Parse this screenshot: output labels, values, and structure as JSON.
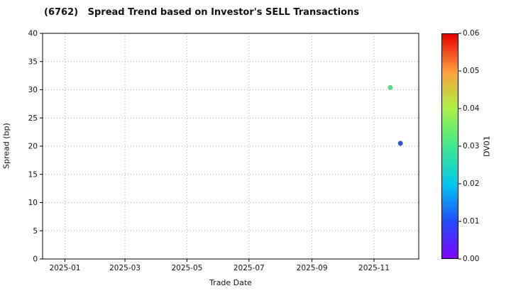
{
  "chart_data": {
    "type": "scatter",
    "title": "(6762)   Spread Trend based on Investor's SELL Transactions",
    "xlabel": "Trade Date",
    "ylabel": "Spread (bp)",
    "ylim": [
      0,
      40
    ],
    "yticks": [
      0,
      5,
      10,
      15,
      20,
      25,
      30,
      35,
      40
    ],
    "x_range": [
      "2024-12-10",
      "2025-12-15"
    ],
    "xticks": [
      "2025-01",
      "2025-03",
      "2025-05",
      "2025-07",
      "2025-09",
      "2025-11"
    ],
    "grid": "dotted",
    "legend": "none",
    "points": [
      {
        "date": "2025-11-17",
        "spread_bp": 30.4,
        "dv01": 0.032,
        "color": "#55df85"
      },
      {
        "date": "2025-11-27",
        "spread_bp": 20.5,
        "dv01": 0.008,
        "color": "#2458e0"
      }
    ],
    "colorbar": {
      "label": "DV01",
      "min": 0.0,
      "max": 0.06,
      "ticks": [
        "0.00",
        "0.01",
        "0.02",
        "0.03",
        "0.04",
        "0.05",
        "0.06"
      ],
      "stops": [
        {
          "pos": 0.0,
          "color": "#7e03fc"
        },
        {
          "pos": 0.17,
          "color": "#2050fa"
        },
        {
          "pos": 0.33,
          "color": "#00c8f0"
        },
        {
          "pos": 0.5,
          "color": "#40e88c"
        },
        {
          "pos": 0.67,
          "color": "#aaf244"
        },
        {
          "pos": 0.83,
          "color": "#ffa13c"
        },
        {
          "pos": 1.0,
          "color": "#e50000"
        }
      ]
    }
  }
}
